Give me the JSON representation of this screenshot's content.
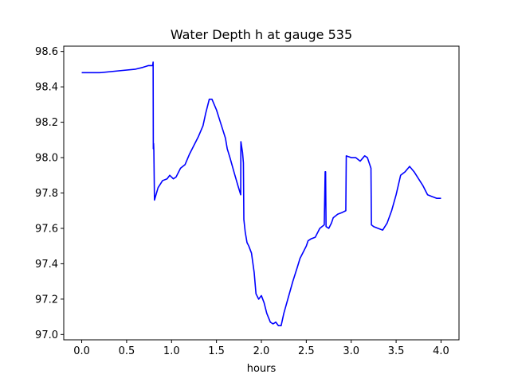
{
  "chart_data": {
    "type": "line",
    "title": "Water Depth h at gauge 535",
    "xlabel": "hours",
    "ylabel": "",
    "xlim": [
      -0.2,
      4.2
    ],
    "ylim": [
      96.97,
      98.63
    ],
    "xticks": [
      0.0,
      0.5,
      1.0,
      1.5,
      2.0,
      2.5,
      3.0,
      3.5,
      4.0
    ],
    "xtick_labels": [
      "0.0",
      "0.5",
      "1.0",
      "1.5",
      "2.0",
      "2.5",
      "3.0",
      "3.5",
      "4.0"
    ],
    "yticks": [
      97.0,
      97.2,
      97.4,
      97.6,
      97.8,
      98.0,
      98.2,
      98.4,
      98.6
    ],
    "ytick_labels": [
      "97.0",
      "97.2",
      "97.4",
      "97.6",
      "97.8",
      "98.0",
      "98.2",
      "98.4",
      "98.6"
    ],
    "grid": false,
    "series": [
      {
        "color": "#0000ff",
        "points": [
          [
            0.0,
            98.48
          ],
          [
            0.2,
            98.48
          ],
          [
            0.4,
            98.49
          ],
          [
            0.6,
            98.5
          ],
          [
            0.68,
            98.51
          ],
          [
            0.74,
            98.52
          ],
          [
            0.79,
            98.52
          ],
          [
            0.795,
            98.54
          ],
          [
            0.797,
            98.05
          ],
          [
            0.8,
            98.08
          ],
          [
            0.803,
            98.04
          ],
          [
            0.81,
            97.76
          ],
          [
            0.85,
            97.83
          ],
          [
            0.9,
            97.87
          ],
          [
            0.95,
            97.88
          ],
          [
            0.98,
            97.9
          ],
          [
            1.02,
            97.88
          ],
          [
            1.05,
            97.89
          ],
          [
            1.1,
            97.94
          ],
          [
            1.15,
            97.96
          ],
          [
            1.2,
            98.02
          ],
          [
            1.25,
            98.07
          ],
          [
            1.3,
            98.12
          ],
          [
            1.35,
            98.18
          ],
          [
            1.38,
            98.25
          ],
          [
            1.42,
            98.33
          ],
          [
            1.45,
            98.33
          ],
          [
            1.5,
            98.27
          ],
          [
            1.55,
            98.19
          ],
          [
            1.6,
            98.11
          ],
          [
            1.62,
            98.05
          ],
          [
            1.65,
            98.0
          ],
          [
            1.7,
            97.91
          ],
          [
            1.74,
            97.84
          ],
          [
            1.77,
            97.79
          ],
          [
            1.772,
            98.09
          ],
          [
            1.79,
            98.03
          ],
          [
            1.8,
            97.97
          ],
          [
            1.805,
            97.65
          ],
          [
            1.82,
            97.58
          ],
          [
            1.84,
            97.52
          ],
          [
            1.86,
            97.5
          ],
          [
            1.89,
            97.46
          ],
          [
            1.92,
            97.35
          ],
          [
            1.94,
            97.23
          ],
          [
            1.97,
            97.2
          ],
          [
            2.0,
            97.22
          ],
          [
            2.03,
            97.18
          ],
          [
            2.06,
            97.12
          ],
          [
            2.1,
            97.07
          ],
          [
            2.13,
            97.06
          ],
          [
            2.16,
            97.07
          ],
          [
            2.19,
            97.05
          ],
          [
            2.22,
            97.05
          ],
          [
            2.25,
            97.12
          ],
          [
            2.3,
            97.21
          ],
          [
            2.35,
            97.3
          ],
          [
            2.4,
            97.38
          ],
          [
            2.43,
            97.43
          ],
          [
            2.47,
            97.47
          ],
          [
            2.5,
            97.5
          ],
          [
            2.52,
            97.53
          ],
          [
            2.55,
            97.54
          ],
          [
            2.6,
            97.55
          ],
          [
            2.65,
            97.6
          ],
          [
            2.7,
            97.62
          ],
          [
            2.71,
            97.92
          ],
          [
            2.715,
            97.92
          ],
          [
            2.72,
            97.61
          ],
          [
            2.75,
            97.6
          ],
          [
            2.78,
            97.63
          ],
          [
            2.8,
            97.66
          ],
          [
            2.85,
            97.68
          ],
          [
            2.9,
            97.69
          ],
          [
            2.94,
            97.7
          ],
          [
            2.945,
            98.01
          ],
          [
            3.0,
            98.0
          ],
          [
            3.05,
            98.0
          ],
          [
            3.1,
            97.98
          ],
          [
            3.15,
            98.01
          ],
          [
            3.18,
            98.0
          ],
          [
            3.22,
            97.94
          ],
          [
            3.225,
            97.62
          ],
          [
            3.25,
            97.61
          ],
          [
            3.3,
            97.6
          ],
          [
            3.35,
            97.59
          ],
          [
            3.4,
            97.63
          ],
          [
            3.45,
            97.7
          ],
          [
            3.5,
            97.79
          ],
          [
            3.55,
            97.9
          ],
          [
            3.6,
            97.92
          ],
          [
            3.65,
            97.95
          ],
          [
            3.7,
            97.92
          ],
          [
            3.75,
            97.88
          ],
          [
            3.8,
            97.84
          ],
          [
            3.85,
            97.79
          ],
          [
            3.9,
            97.78
          ],
          [
            3.95,
            97.77
          ],
          [
            4.0,
            97.77
          ]
        ]
      }
    ]
  }
}
